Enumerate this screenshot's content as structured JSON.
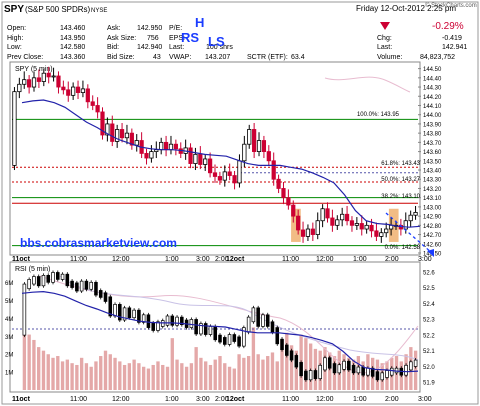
{
  "quote": {
    "ticker": "SPY",
    "name": "(S&P 500 SPDRs)",
    "exchange": "NYSE",
    "date_time": "Friday  12-Oct-2012  2:25 pm",
    "copyright": "© StockCharts.com",
    "open_label": "Open:",
    "open": "143.460",
    "high_label": "High:",
    "high": "143.950",
    "low_label": "Low:",
    "low": "142.580",
    "prev_close_label": "Prev Close:",
    "prev_close": "143.360",
    "ask_label": "Ask:",
    "ask": "142.950",
    "ask_size_label": "Ask Size:",
    "ask_size": "756",
    "bid_label": "Bid:",
    "bid": "142.940",
    "bid_size_label": "Bid Size:",
    "bid_size": "43",
    "pe_label": "P/E:",
    "pe": "",
    "eps_label": "EPS:",
    "eps": "",
    "last_label": "Last:",
    "last_shrs": "100 shrs",
    "vwap_label": "VWAP:",
    "vwap": "143.207",
    "sctr_label": "SCTR (ETF):",
    "sctr": "63.4",
    "pct_change": "-0.29%",
    "chg_label": "Chg:",
    "chg": "-0.419",
    "last2_label": "Last:",
    "last2": "142.941",
    "volume_label": "Volume:",
    "volume": "84,823,752"
  },
  "annotations": {
    "h": "H",
    "rs": "RS",
    "ls": "LS",
    "watermark": "bbs.cobrasmarketview.com",
    "fib_100": "100.0%: 143.95",
    "fib_618": "61.8%: 143.43",
    "fib_50": "50.0%: 143.27",
    "fib_382": "38.2%: 143.10",
    "fib_0": "0.0%: 142.58"
  },
  "colors": {
    "up": "#000000",
    "down": "#cc0033",
    "ma": "#2222aa",
    "fib_line": "#cc0000",
    "hline_green": "#008800",
    "accent_blue": "#1a3cff",
    "orange_box": "#f0b070",
    "volume": "#e4a8a8",
    "rsi": "#000000"
  },
  "chart_data": [
    {
      "type": "candlestick",
      "title": "SPY (5 min)",
      "x_tick_labels": [
        "11oct",
        "11:00",
        "12:00",
        "1:00",
        "2:00",
        "3:00",
        "12oct",
        "11:00",
        "12:00",
        "1:00",
        "2:00",
        "3:00"
      ],
      "y_tick_labels": [
        "142.50",
        "142.60",
        "142.70",
        "142.80",
        "142.90",
        "143.00",
        "143.10",
        "143.20",
        "143.30",
        "143.40",
        "143.50",
        "143.60",
        "143.70",
        "143.80",
        "143.90",
        "144.00",
        "144.10",
        "144.20",
        "144.30",
        "144.40",
        "144.50"
      ],
      "ylim": [
        142.5,
        144.55
      ],
      "close": [
        144.25,
        144.33,
        144.38,
        144.3,
        144.4,
        144.36,
        144.45,
        144.41,
        144.42,
        144.3,
        144.27,
        144.21,
        144.3,
        144.24,
        144.28,
        144.14,
        144.1,
        144.03,
        143.78,
        143.9,
        143.71,
        143.84,
        143.75,
        143.8,
        143.67,
        143.72,
        143.58,
        143.53,
        143.6,
        143.62,
        143.7,
        143.62,
        143.68,
        143.63,
        143.58,
        143.64,
        143.47,
        143.57,
        143.46,
        143.52,
        143.37,
        143.33,
        143.29,
        143.38,
        143.34,
        143.26,
        143.5,
        143.68,
        143.84,
        143.6,
        143.72,
        143.6,
        143.5,
        143.3,
        143.2,
        143.1,
        143.02,
        142.9,
        142.75,
        142.68,
        142.76,
        142.7,
        142.85,
        142.98,
        142.88,
        142.8,
        142.86,
        142.92,
        142.85,
        142.8,
        142.82,
        142.76,
        142.8,
        142.74,
        142.68,
        142.72,
        142.76,
        142.8,
        142.8,
        142.76,
        142.85,
        142.91,
        142.94
      ],
      "moving_average": [
        144.13,
        144.15,
        144.16,
        144.13,
        144.08,
        144.0,
        143.92,
        143.86,
        143.79,
        143.73,
        143.69,
        143.65,
        143.63,
        143.62,
        143.62,
        143.61,
        143.59,
        143.57,
        143.56,
        143.55,
        143.51,
        143.47,
        143.45,
        143.45,
        143.45,
        143.43,
        143.41,
        143.37,
        143.32,
        143.26,
        143.13,
        142.96,
        142.85,
        142.82,
        142.81,
        142.79,
        142.78,
        142.79
      ],
      "horizontal_lines": [
        143.95,
        143.43,
        143.27,
        143.1,
        142.58
      ]
    },
    {
      "type": "line",
      "title": "RSI (5 min)",
      "y_tick_labels": [
        "51.9",
        "52.0",
        "52.1",
        "52.2",
        "52.3",
        "52.4",
        "52.5",
        "52.6"
      ],
      "ylim": [
        51.85,
        52.65
      ],
      "volume_tick_labels": [
        "1M",
        "2M",
        "3M",
        "4M",
        "5M",
        "6M"
      ],
      "volume": [
        5.2,
        3.1,
        2.8,
        2.4,
        2.2,
        2.0,
        1.8,
        1.9,
        1.6,
        1.7,
        1.5,
        1.4,
        1.8,
        1.5,
        1.3,
        1.6,
        1.9,
        2.2,
        2.0,
        1.8,
        1.6,
        1.4,
        1.5,
        1.7,
        1.5,
        1.3,
        1.2,
        1.4,
        1.6,
        1.4,
        1.3,
        2.9,
        1.7,
        1.5,
        1.3,
        1.5,
        2.4,
        1.8,
        1.6,
        1.4,
        1.7,
        1.9,
        1.5,
        1.3,
        1.2,
        2.0,
        1.8,
        1.9,
        3.5,
        2.0,
        1.7,
        1.9,
        2.1,
        1.6,
        2.8,
        3.2,
        2.5,
        2.2,
        3.1,
        2.9,
        2.6,
        2.3,
        2.2,
        2.4,
        2.1,
        1.9,
        2.2,
        2.0,
        1.8,
        1.7,
        1.9,
        1.6,
        2.0,
        1.8,
        1.7,
        1.5,
        1.6,
        1.8,
        1.9,
        1.6,
        2.0,
        2.4,
        2.2
      ]
    }
  ]
}
